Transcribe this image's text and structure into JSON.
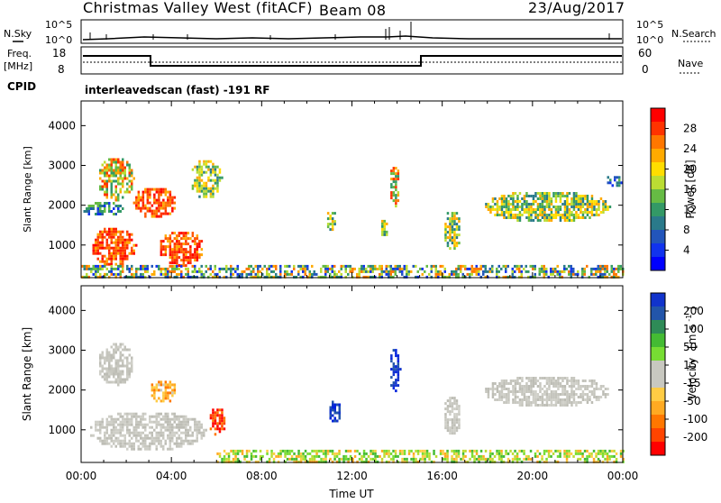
{
  "header": {
    "station": "Christmas Valley West (fitACF)",
    "beam": "Beam 08",
    "date": "23/Aug/2017"
  },
  "status_panels": {
    "nsky_label": "N.Sky",
    "nsearch_label": "N.Search",
    "noise_ticks": [
      "10^5",
      "10^0"
    ],
    "freq_label_1": "Freq.",
    "freq_label_2": "[MHz]",
    "freq_ticks": [
      "18",
      "8"
    ],
    "nave_label": "Nave",
    "nave_ticks": [
      "60",
      "0"
    ],
    "cpid_label": "CPID",
    "cpid_value": "interleavedscan (fast) -191 RF"
  },
  "chart_data": [
    {
      "type": "heatmap",
      "title": "",
      "xlabel": "",
      "ylabel": "Slant Range [km]",
      "xlim_hours": [
        0,
        24
      ],
      "ylim_km": [
        180,
        4620
      ],
      "yticks": [
        "4000",
        "3000",
        "2000",
        "1000"
      ],
      "colorbar_label": "Power [dB]",
      "colorbar_ticks": [
        "28",
        "24",
        "20",
        "16",
        "12",
        "8",
        "4"
      ],
      "colorbar_colors": [
        "#ff0000",
        "#ff3300",
        "#ff7700",
        "#ffaa00",
        "#ffdd00",
        "#bbdd33",
        "#66bb44",
        "#339966",
        "#2a7a8a",
        "#2255bb",
        "#1133ee",
        "#0000ff"
      ],
      "regions": [
        {
          "t0": 0.7,
          "t1": 2.3,
          "r0": 2150,
          "r1": 3250,
          "level": "mixed",
          "note": "X-shaped echo, upper arm"
        },
        {
          "t0": 2.2,
          "t1": 4.2,
          "r0": 1700,
          "r1": 2500,
          "level": "high"
        },
        {
          "t0": 0.4,
          "t1": 2.4,
          "r0": 500,
          "r1": 1500,
          "level": "high"
        },
        {
          "t0": 3.4,
          "t1": 5.4,
          "r0": 500,
          "r1": 1400,
          "level": "high"
        },
        {
          "t0": 4.8,
          "t1": 6.2,
          "r0": 2200,
          "r1": 3200,
          "level": "mid"
        },
        {
          "t0": 0.0,
          "t1": 1.8,
          "r0": 1750,
          "r1": 2150,
          "level": "low"
        },
        {
          "t0": 10.8,
          "t1": 11.3,
          "r0": 1400,
          "r1": 1900,
          "level": "mid"
        },
        {
          "t0": 13.2,
          "t1": 13.6,
          "r0": 1200,
          "r1": 1700,
          "level": "mid"
        },
        {
          "t0": 13.6,
          "t1": 14.1,
          "r0": 2000,
          "r1": 3100,
          "level": "mixed"
        },
        {
          "t0": 16.0,
          "t1": 16.8,
          "r0": 900,
          "r1": 1900,
          "level": "mid"
        },
        {
          "t0": 17.8,
          "t1": 23.4,
          "r0": 1600,
          "r1": 2400,
          "level": "mid"
        },
        {
          "t0": 23.2,
          "t1": 24.0,
          "r0": 2500,
          "r1": 2800,
          "level": "low"
        },
        {
          "t0": 0.0,
          "t1": 24.0,
          "r0": 180,
          "r1": 500,
          "level": "ground"
        }
      ]
    },
    {
      "type": "heatmap",
      "title": "",
      "xlabel": "Time UT",
      "ylabel": "Slant Range [km]",
      "xlim_hours": [
        0,
        24
      ],
      "ylim_km": [
        180,
        4620
      ],
      "yticks": [
        "4000",
        "3000",
        "2000",
        "1000"
      ],
      "xticks": [
        "00:00",
        "04:00",
        "08:00",
        "12:00",
        "16:00",
        "20:00",
        "00:00"
      ],
      "colorbar_label_main": "Velocity",
      "colorbar_label_unit_1": "[m s",
      "colorbar_label_unit_2": "-1",
      "colorbar_label_unit_3": "]",
      "colorbar_ticks": [
        "200",
        "100",
        "50",
        "15",
        "-15",
        "-50",
        "-100",
        "-200"
      ],
      "colorbar_colors": [
        "#1133cc",
        "#2255aa",
        "#2e8b57",
        "#44bb33",
        "#77dd33",
        "#c8c8c0",
        "#c8c8c0",
        "#ffcc44",
        "#ffaa22",
        "#ff7700",
        "#ff4400",
        "#ff0000"
      ],
      "regions": [
        {
          "t0": 0.7,
          "t1": 2.3,
          "r0": 2150,
          "r1": 3250,
          "level": "ground-scatter"
        },
        {
          "t0": 0.3,
          "t1": 5.5,
          "r0": 500,
          "r1": 1500,
          "level": "ground-scatter"
        },
        {
          "t0": 3.0,
          "t1": 4.2,
          "r0": 1700,
          "r1": 2300,
          "level": "orange"
        },
        {
          "t0": 5.6,
          "t1": 6.4,
          "r0": 900,
          "r1": 1600,
          "level": "red"
        },
        {
          "t0": 10.9,
          "t1": 11.5,
          "r0": 1200,
          "r1": 1800,
          "level": "blue"
        },
        {
          "t0": 13.6,
          "t1": 14.1,
          "r0": 2000,
          "r1": 3100,
          "level": "blue"
        },
        {
          "t0": 16.0,
          "t1": 16.8,
          "r0": 900,
          "r1": 1900,
          "level": "ground-scatter"
        },
        {
          "t0": 17.8,
          "t1": 23.4,
          "r0": 1600,
          "r1": 2400,
          "level": "ground-scatter"
        },
        {
          "t0": 6.0,
          "t1": 24.0,
          "r0": 180,
          "r1": 500,
          "level": "near-zero"
        }
      ]
    }
  ]
}
